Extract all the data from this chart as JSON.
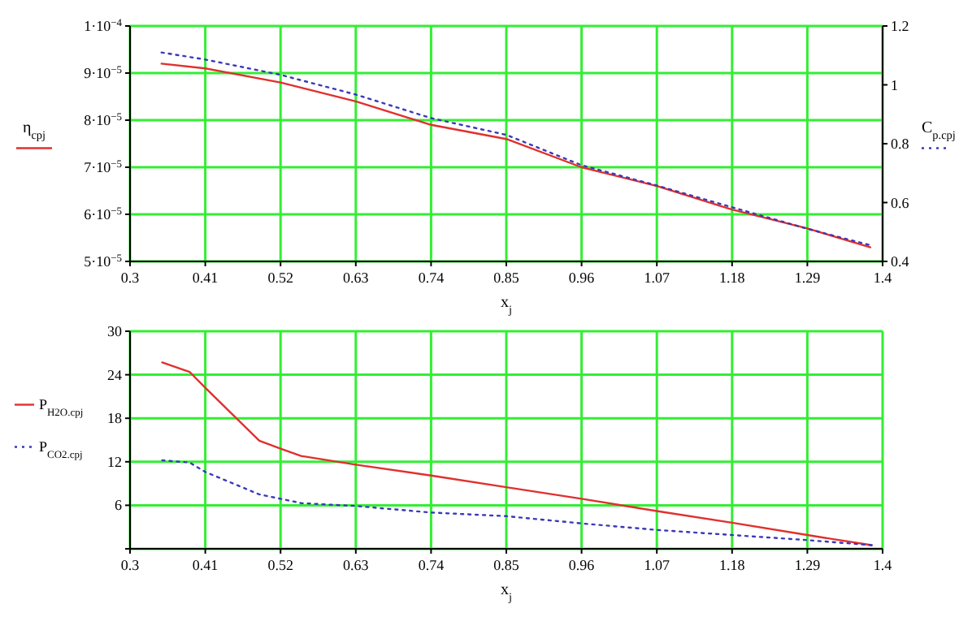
{
  "chart_data": [
    {
      "type": "line",
      "xlabel": "x$_{j}$",
      "ylabel": "η$_{cpj}$",
      "y2label": "C$_{p.cpj}$",
      "x": [
        0.346,
        0.41,
        0.52,
        0.63,
        0.74,
        0.85,
        0.96,
        1.07,
        1.18,
        1.29,
        1.382
      ],
      "series": [
        {
          "color": "#e0302e",
          "line_style": "solid",
          "values": [
            9.2e-05,
            9.1e-05,
            8.8e-05,
            8.4e-05,
            7.9e-05,
            7.6e-05,
            7e-05,
            6.6e-05,
            6.1e-05,
            5.7e-05,
            5.3e-05
          ]
        },
        {
          "color": "#3a3ab8",
          "line_style": "dotted",
          "axis": "y2",
          "values": [
            1.11,
            1.086,
            1.034,
            0.967,
            0.887,
            0.83,
            0.727,
            0.658,
            0.584,
            0.511,
            0.455
          ]
        }
      ],
      "xlim": [
        0.3,
        1.4
      ],
      "xticks": [
        0.3,
        0.41,
        0.52,
        0.63,
        0.74,
        0.85,
        0.96,
        1.07,
        1.18,
        1.29,
        1.4
      ],
      "ylim": [
        5e-05,
        0.0001
      ],
      "yticks": [
        {
          "value": 5e-05,
          "label": "5·10$^{−5}$"
        },
        {
          "value": 6e-05,
          "label": "6·10$^{−5}$"
        },
        {
          "value": 7e-05,
          "label": "7·10$^{−5}$"
        },
        {
          "value": 8e-05,
          "label": "8·10$^{−5}$"
        },
        {
          "value": 9e-05,
          "label": "9·10$^{−5}$"
        },
        {
          "value": 0.0001,
          "label": "1·10$^{−4}$"
        }
      ],
      "y2lim": [
        0.4,
        1.2
      ],
      "y2ticks": [
        0.4,
        0.6,
        0.8,
        1,
        1.2
      ],
      "grid": true,
      "marker": "none"
    },
    {
      "type": "line",
      "xlabel": "x$_{j}$",
      "x": [
        0.347,
        0.387,
        0.41,
        0.489,
        0.52,
        0.55,
        0.63,
        0.74,
        0.85,
        0.96,
        1.07,
        1.18,
        1.29,
        1.384
      ],
      "series": [
        {
          "name": "P$_{H2O.cpj}$",
          "color": "#e0302e",
          "line_style": "solid",
          "values": [
            25.7,
            24.4,
            22.2,
            14.9,
            13.8,
            12.8,
            11.6,
            10.1,
            8.5,
            6.9,
            5.2,
            3.6,
            1.9,
            0.5
          ]
        },
        {
          "name": "P$_{CO2.cpj}$",
          "color": "#3a3ab8",
          "line_style": "dotted",
          "values": [
            12.2,
            11.9,
            10.6,
            7.5,
            6.9,
            6.3,
            5.9,
            5.0,
            4.5,
            3.5,
            2.6,
            1.9,
            1.2,
            0.5
          ]
        }
      ],
      "xlim": [
        0.3,
        1.4
      ],
      "xticks": [
        0.3,
        0.41,
        0.52,
        0.63,
        0.74,
        0.85,
        0.96,
        1.07,
        1.18,
        1.29,
        1.4
      ],
      "ylim": [
        0,
        30
      ],
      "yticks": [
        {
          "value": 0,
          "label": null
        },
        6,
        12,
        18,
        24,
        30
      ],
      "grid": true,
      "legend": "left",
      "marker": "none"
    }
  ]
}
